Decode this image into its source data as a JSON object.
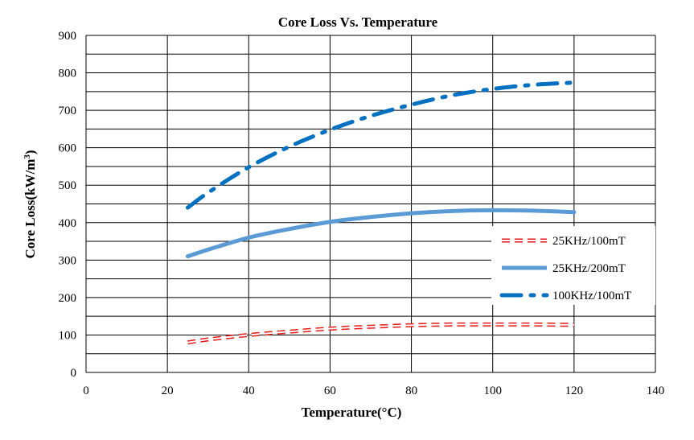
{
  "chart_data": {
    "type": "line",
    "title": "Core Loss Vs. Temperature",
    "xlabel": "Temperature(°C)",
    "ylabel": "Core Loss(kW/m",
    "ylabel_sup": "3",
    "ylabel_end": ")",
    "xlim": [
      0,
      140
    ],
    "ylim": [
      0,
      900
    ],
    "x_ticks": [
      0,
      20,
      40,
      60,
      80,
      100,
      120,
      140
    ],
    "y_ticks": [
      0,
      100,
      200,
      300,
      400,
      500,
      600,
      700,
      800,
      900
    ],
    "x_tick_labels": [
      "0",
      "20",
      "40",
      "60",
      "80",
      "100",
      "120",
      "140"
    ],
    "y_tick_labels": [
      "0",
      "100",
      "200",
      "300",
      "400",
      "500",
      "600",
      "700",
      "800",
      "900"
    ],
    "grid": true,
    "legend_position": "right",
    "series": [
      {
        "name": "25KHz/100mT",
        "color": "#e31a1c",
        "style": "dashed-hollow",
        "x": [
          25,
          30,
          40,
          50,
          60,
          70,
          80,
          90,
          100,
          110,
          120
        ],
        "y": [
          80,
          88,
          100,
          109,
          117,
          122,
          126,
          128,
          128,
          128,
          127
        ]
      },
      {
        "name": "25KHz/200mT",
        "color": "#5b9bd5",
        "style": "solid",
        "x": [
          25,
          30,
          40,
          50,
          60,
          70,
          80,
          90,
          100,
          110,
          120
        ],
        "y": [
          310,
          328,
          360,
          383,
          402,
          415,
          425,
          431,
          433,
          432,
          428
        ]
      },
      {
        "name": "100KHz/100mT",
        "color": "#0070c0",
        "style": "dash-dot",
        "x": [
          25,
          30,
          40,
          50,
          60,
          70,
          80,
          90,
          100,
          110,
          120
        ],
        "y": [
          440,
          480,
          548,
          603,
          648,
          685,
          715,
          740,
          757,
          768,
          774
        ]
      }
    ]
  }
}
